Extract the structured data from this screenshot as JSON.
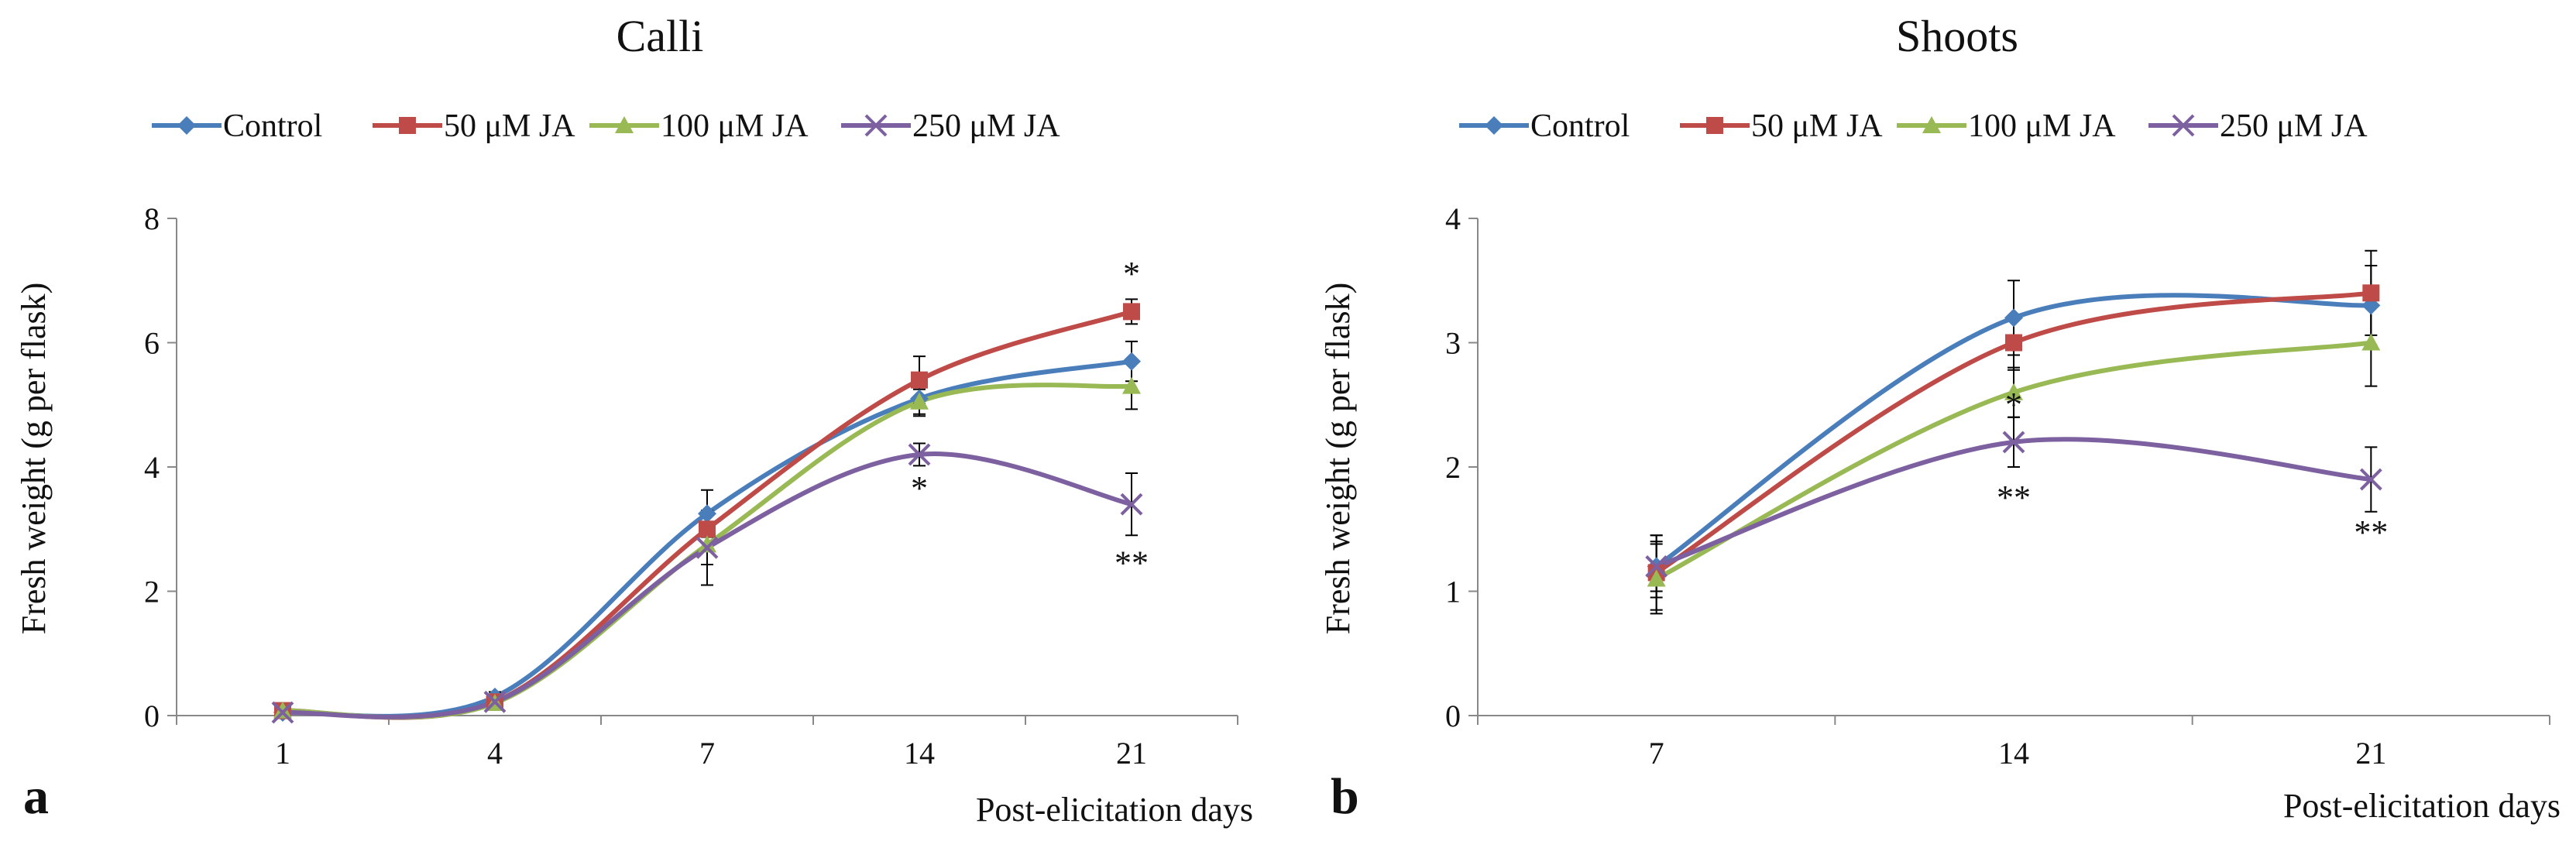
{
  "colors": {
    "control": "#4a7ebb",
    "ja50": "#be4b48",
    "ja100": "#98b954",
    "ja250": "#7d60a0",
    "axis": "#888888"
  },
  "chart_data": [
    {
      "type": "line",
      "panel_label": "a",
      "title": "Calli",
      "xlabel": "Post-elicitation days",
      "ylabel": "Fresh weight (g per flask)",
      "categories": [
        "1",
        "4",
        "7",
        "14",
        "21"
      ],
      "ylim": [
        0,
        8
      ],
      "yticks": [
        0,
        2,
        4,
        6,
        8
      ],
      "legend_position": "top",
      "series": [
        {
          "name": "Control",
          "key": "control",
          "marker": "diamond",
          "values": [
            0.05,
            0.3,
            3.25,
            5.1,
            5.7
          ],
          "errors": [
            0.05,
            0.08,
            0.38,
            0.28,
            0.32
          ]
        },
        {
          "name": "50 μM JA",
          "key": "ja50",
          "marker": "square",
          "values": [
            0.08,
            0.22,
            3.0,
            5.4,
            6.5
          ],
          "errors": [
            0.05,
            0.06,
            0.3,
            0.38,
            0.2
          ]
        },
        {
          "name": "100 μM JA",
          "key": "ja100",
          "marker": "triangle",
          "values": [
            0.08,
            0.2,
            2.75,
            5.05,
            5.3
          ],
          "errors": [
            0.05,
            0.06,
            0.32,
            0.2,
            0.37
          ]
        },
        {
          "name": "250 μM JA",
          "key": "ja250",
          "marker": "cross",
          "values": [
            0.05,
            0.22,
            2.7,
            4.2,
            3.4
          ],
          "errors": [
            0.05,
            0.06,
            0.6,
            0.18,
            0.5
          ]
        }
      ],
      "annotations": [
        {
          "text": "*",
          "x": "21",
          "y": 7.1
        },
        {
          "text": "*",
          "x": "14",
          "y": 3.65
        },
        {
          "text": "**",
          "x": "21",
          "y": 2.45
        }
      ]
    },
    {
      "type": "line",
      "panel_label": "b",
      "title": "Shoots",
      "xlabel": "Post-elicitation days",
      "ylabel": "Fresh weight (g per flask)",
      "categories": [
        "7",
        "14",
        "21"
      ],
      "ylim": [
        0,
        4
      ],
      "yticks": [
        0,
        1,
        2,
        3,
        4
      ],
      "legend_position": "top",
      "series": [
        {
          "name": "Control",
          "key": "control",
          "marker": "diamond",
          "values": [
            1.2,
            3.2,
            3.3
          ],
          "errors": [
            0.25,
            0.3,
            0.32
          ]
        },
        {
          "name": "50 μM JA",
          "key": "ja50",
          "marker": "square",
          "values": [
            1.15,
            3.0,
            3.4
          ],
          "errors": [
            0.3,
            0.22,
            0.34
          ]
        },
        {
          "name": "100 μM JA",
          "key": "ja100",
          "marker": "triangle",
          "values": [
            1.1,
            2.6,
            3.0
          ],
          "errors": [
            0.28,
            0.2,
            0.35
          ]
        },
        {
          "name": "250 μM JA",
          "key": "ja250",
          "marker": "cross",
          "values": [
            1.2,
            2.2,
            1.9
          ],
          "errors": [
            0.2,
            0.2,
            0.26
          ]
        }
      ],
      "annotations": [
        {
          "text": "*",
          "x": "14",
          "y": 2.5
        },
        {
          "text": "**",
          "x": "14",
          "y": 1.75
        },
        {
          "text": "**",
          "x": "21",
          "y": 1.47
        }
      ]
    }
  ]
}
